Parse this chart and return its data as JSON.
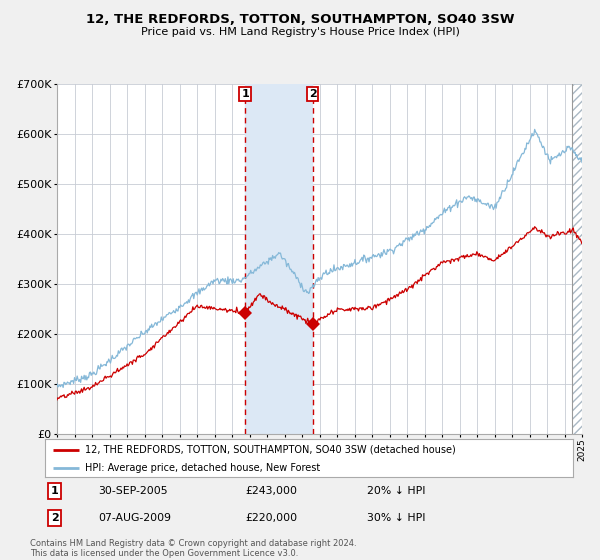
{
  "title": "12, THE REDFORDS, TOTTON, SOUTHAMPTON, SO40 3SW",
  "subtitle": "Price paid vs. HM Land Registry's House Price Index (HPI)",
  "legend_red": "12, THE REDFORDS, TOTTON, SOUTHAMPTON, SO40 3SW (detached house)",
  "legend_blue": "HPI: Average price, detached house, New Forest",
  "transaction1_date": "30-SEP-2005",
  "transaction1_price": "£243,000",
  "transaction1_hpi": "20% ↓ HPI",
  "transaction2_date": "07-AUG-2009",
  "transaction2_price": "£220,000",
  "transaction2_hpi": "30% ↓ HPI",
  "footer": "Contains HM Land Registry data © Crown copyright and database right 2024.\nThis data is licensed under the Open Government Licence v3.0.",
  "red_color": "#cc0000",
  "blue_color": "#85b8d8",
  "fig_bg": "#f0f0f0",
  "plot_bg": "#ffffff",
  "grid_color": "#c8ccd4",
  "vline_color": "#cc0000",
  "highlight_color": "#dce8f5",
  "year_start": 1995,
  "year_end": 2025,
  "ylim_max": 700000,
  "transaction1_year": 2005.75,
  "transaction2_year": 2009.6,
  "transaction1_val_red": 243000,
  "transaction2_val_red": 220000
}
